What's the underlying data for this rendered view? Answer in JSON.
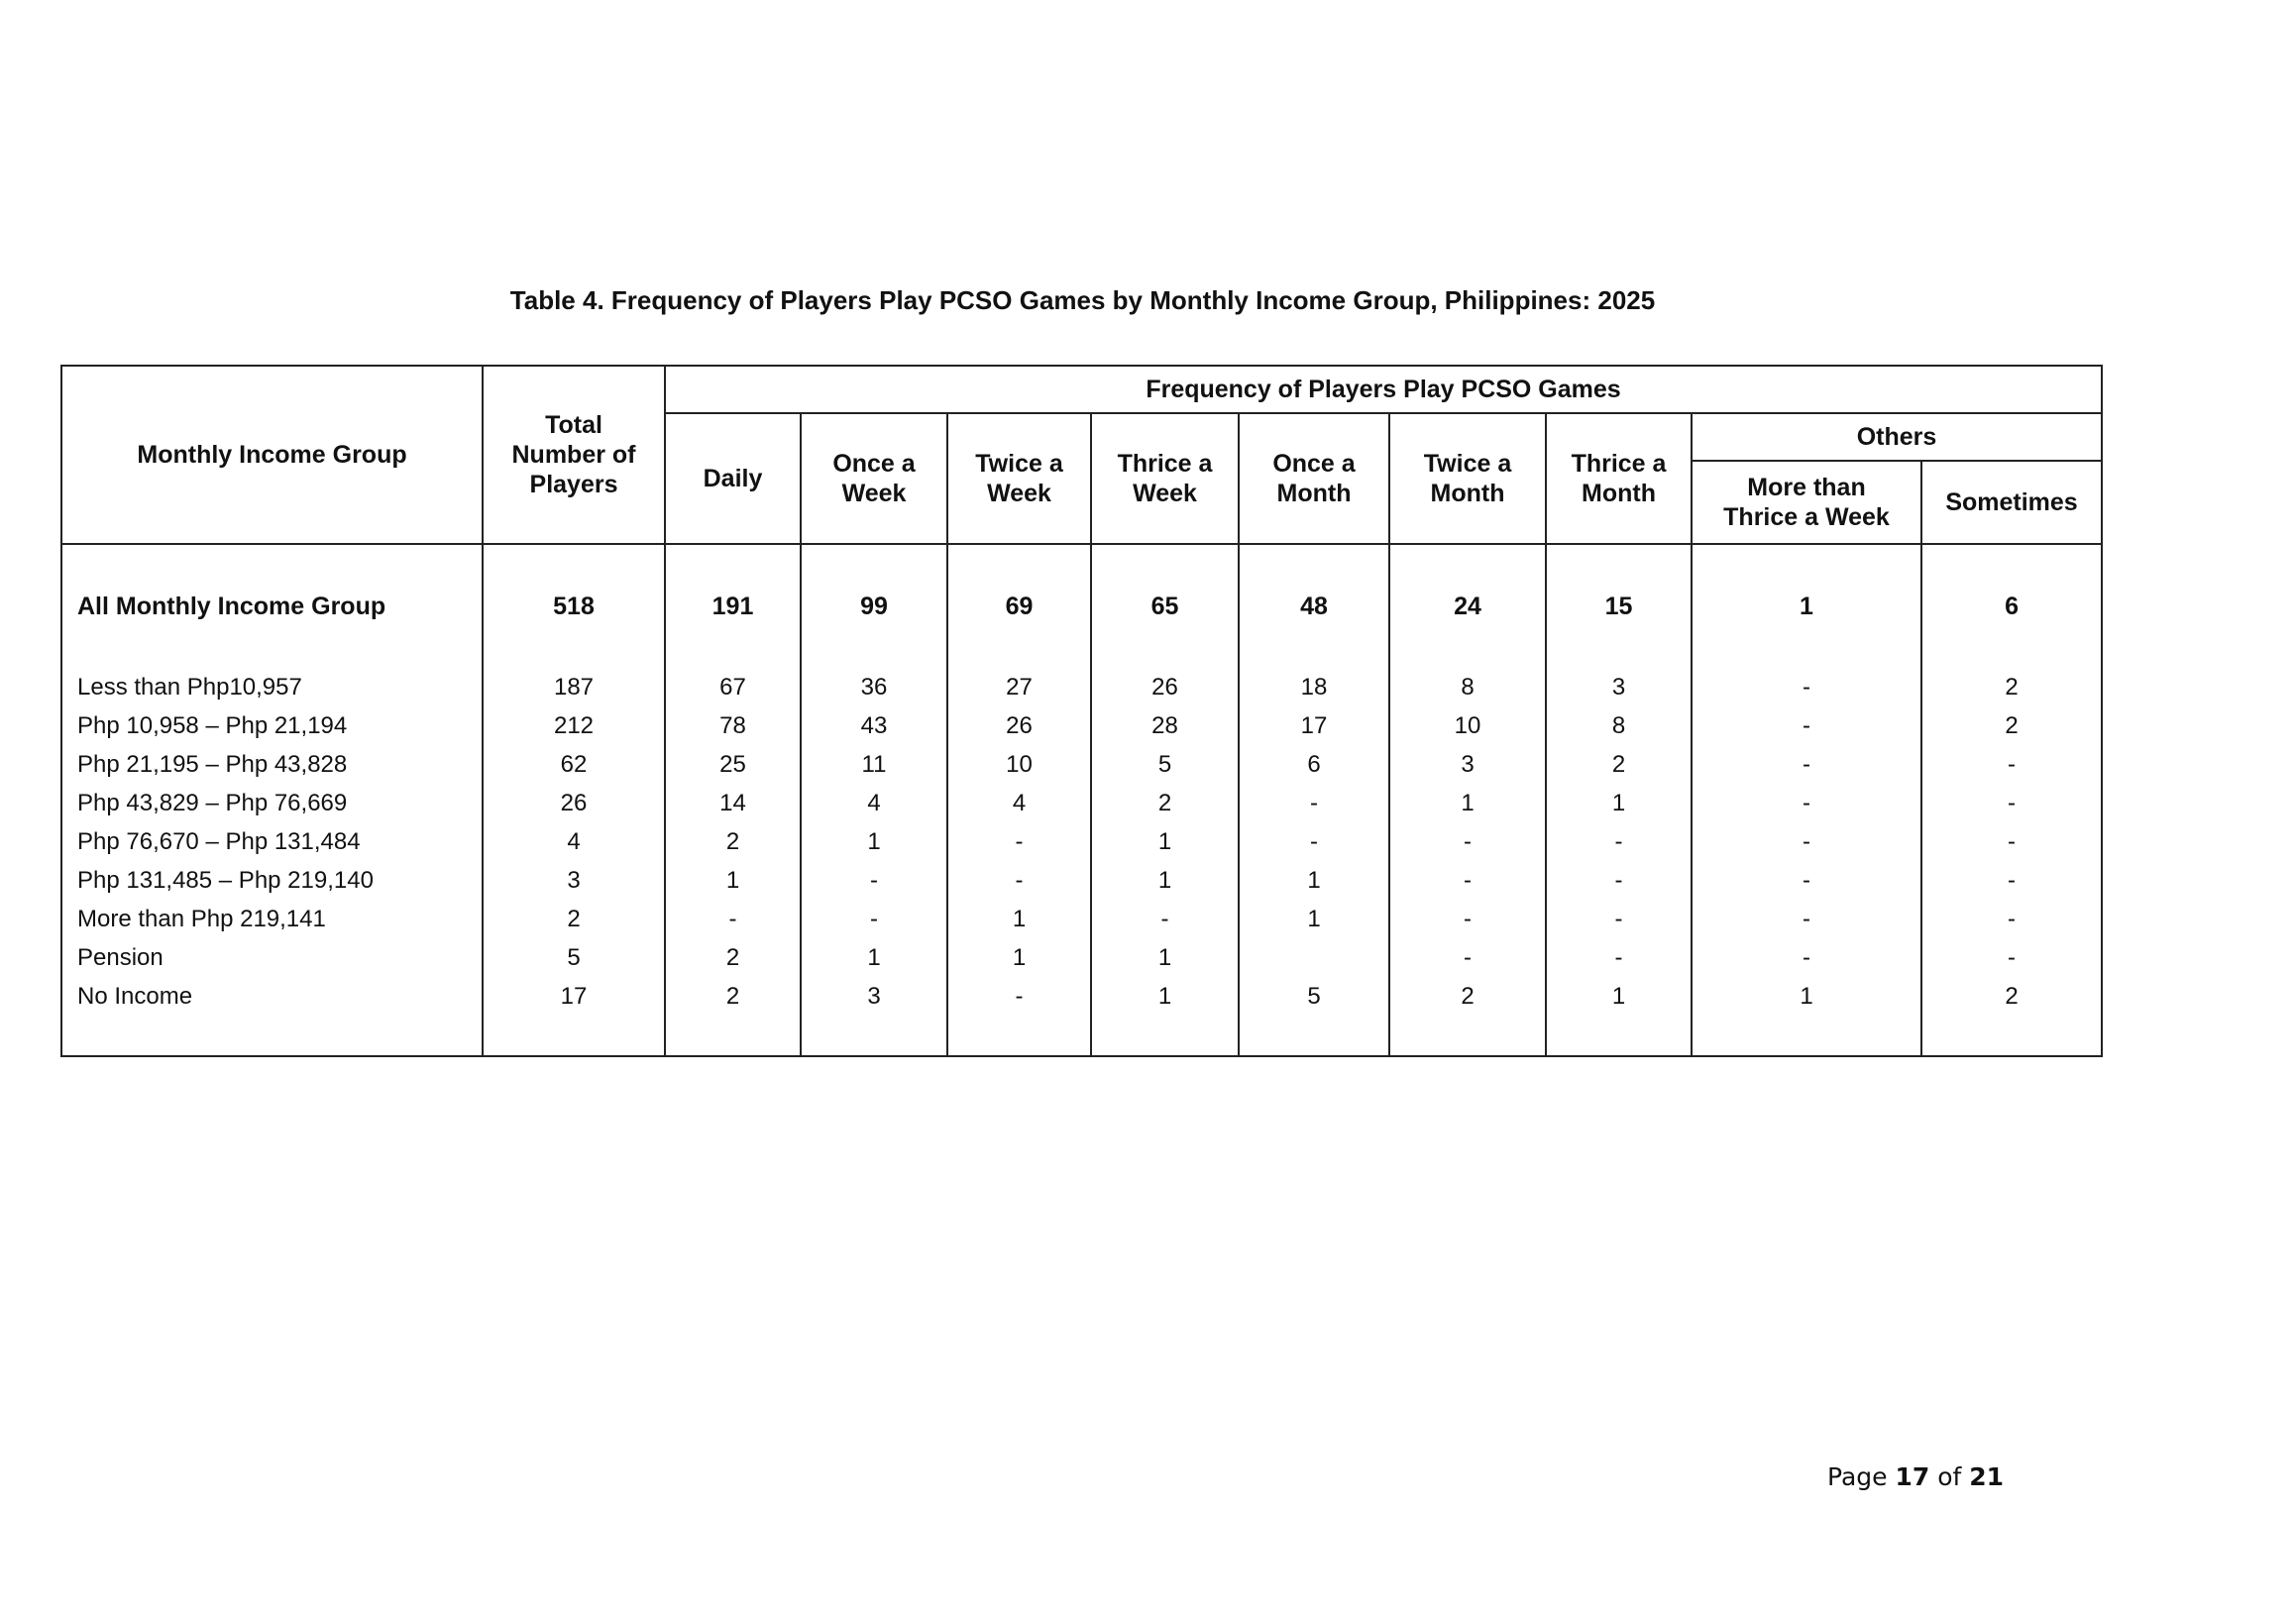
{
  "title": "Table 4.  Frequency of Players Play PCSO Games by Monthly Income Group, Philippines: 2025",
  "headers": {
    "income_group": "Monthly Income Group",
    "total": "Total Number of Players",
    "frequency": "Frequency of Players Play PCSO Games",
    "daily": "Daily",
    "once_week": "Once a Week",
    "twice_week": "Twice a Week",
    "thrice_week": "Thrice a Week",
    "once_month": "Once a Month",
    "twice_month": "Twice a Month",
    "thrice_month": "Thrice a Month",
    "others": "Others",
    "more_than_thrice": "More than Thrice a Week",
    "sometimes": "Sometimes"
  },
  "all_row": [
    "All Monthly Income Group",
    "518",
    "191",
    "99",
    "69",
    "65",
    "48",
    "24",
    "15",
    "1",
    "6"
  ],
  "rows": [
    [
      "Less than Php10,957",
      "187",
      "67",
      "36",
      "27",
      "26",
      "18",
      "8",
      "3",
      "-",
      "2"
    ],
    [
      "Php 10,958 – Php 21,194",
      "212",
      "78",
      "43",
      "26",
      "28",
      "17",
      "10",
      "8",
      "-",
      "2"
    ],
    [
      "Php 21,195 – Php 43,828",
      "62",
      "25",
      "11",
      "10",
      "5",
      "6",
      "3",
      "2",
      "-",
      "-"
    ],
    [
      "Php 43,829 – Php 76,669",
      "26",
      "14",
      "4",
      "4",
      "2",
      "-",
      "1",
      "1",
      "-",
      "-"
    ],
    [
      "Php 76,670 – Php 131,484",
      "4",
      "2",
      "1",
      "-",
      "1",
      "-",
      "-",
      "-",
      "-",
      "-"
    ],
    [
      "Php 131,485 – Php 219,140",
      "3",
      "1",
      "-",
      "-",
      "1",
      "1",
      "-",
      "-",
      "-",
      "-"
    ],
    [
      "More than Php 219,141",
      "2",
      "-",
      "-",
      "1",
      "-",
      "1",
      "-",
      "-",
      "-",
      "-"
    ],
    [
      "Pension",
      "5",
      "2",
      "1",
      "1",
      "1",
      "",
      "-",
      "-",
      "-",
      "-"
    ],
    [
      "No Income",
      "17",
      "2",
      "3",
      "-",
      "1",
      "5",
      "2",
      "1",
      "1",
      "2"
    ]
  ],
  "footer": {
    "prefix": "Page ",
    "page": "17",
    "mid": " of ",
    "total": "21"
  }
}
